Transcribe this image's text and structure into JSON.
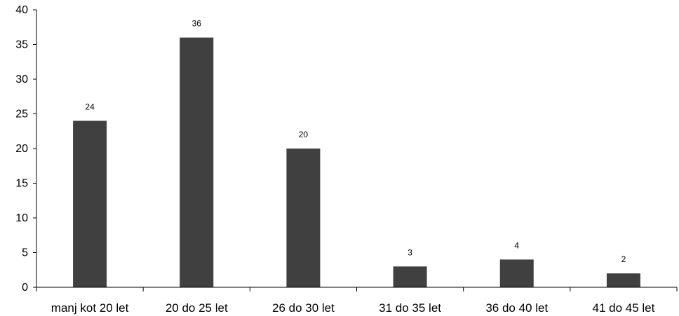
{
  "chart_data": {
    "type": "bar",
    "categories": [
      "manj kot 20 let",
      "20 do 25 let",
      "26 do 30 let",
      "31 do 35 let",
      "36 do 40 let",
      "41 do 45 let"
    ],
    "values": [
      24,
      36,
      20,
      3,
      4,
      2
    ],
    "data_labels": [
      "24",
      "36",
      "20",
      "3",
      "4",
      "2"
    ],
    "y_ticks": [
      "0",
      "5",
      "10",
      "15",
      "20",
      "25",
      "30",
      "35",
      "40"
    ],
    "title": "",
    "xlabel": "",
    "ylabel": "",
    "ylim": [
      0,
      40
    ],
    "grid": false,
    "legend": "none",
    "bar_color": "#404040",
    "axis_color": "#000000"
  }
}
